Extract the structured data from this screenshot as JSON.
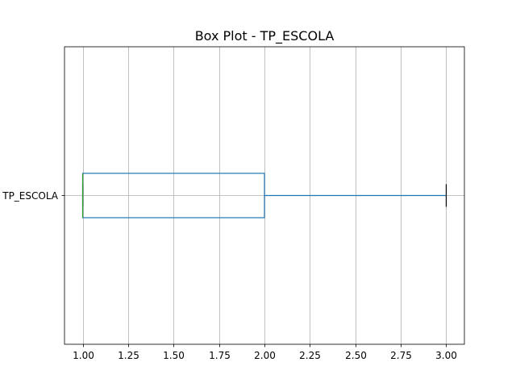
{
  "chart_data": {
    "type": "box",
    "title": "Box Plot - TP_ESCOLA",
    "orientation": "horizontal",
    "category_label": "TP_ESCOLA",
    "xlim": [
      0.9,
      3.1
    ],
    "x_ticks": [
      "1.00",
      "1.25",
      "1.50",
      "1.75",
      "2.00",
      "2.25",
      "2.50",
      "2.75",
      "3.00"
    ],
    "x_tick_values": [
      1.0,
      1.25,
      1.5,
      1.75,
      2.0,
      2.25,
      2.5,
      2.75,
      3.0
    ],
    "grid": true,
    "box": {
      "whisker_low": 1.0,
      "q1": 1.0,
      "median": 1.0,
      "q3": 2.0,
      "whisker_high": 3.0
    },
    "colors": {
      "box": "#1f77b4",
      "median": "#2ca02c",
      "cap": "#000000",
      "grid": "#b0b0b0"
    }
  }
}
